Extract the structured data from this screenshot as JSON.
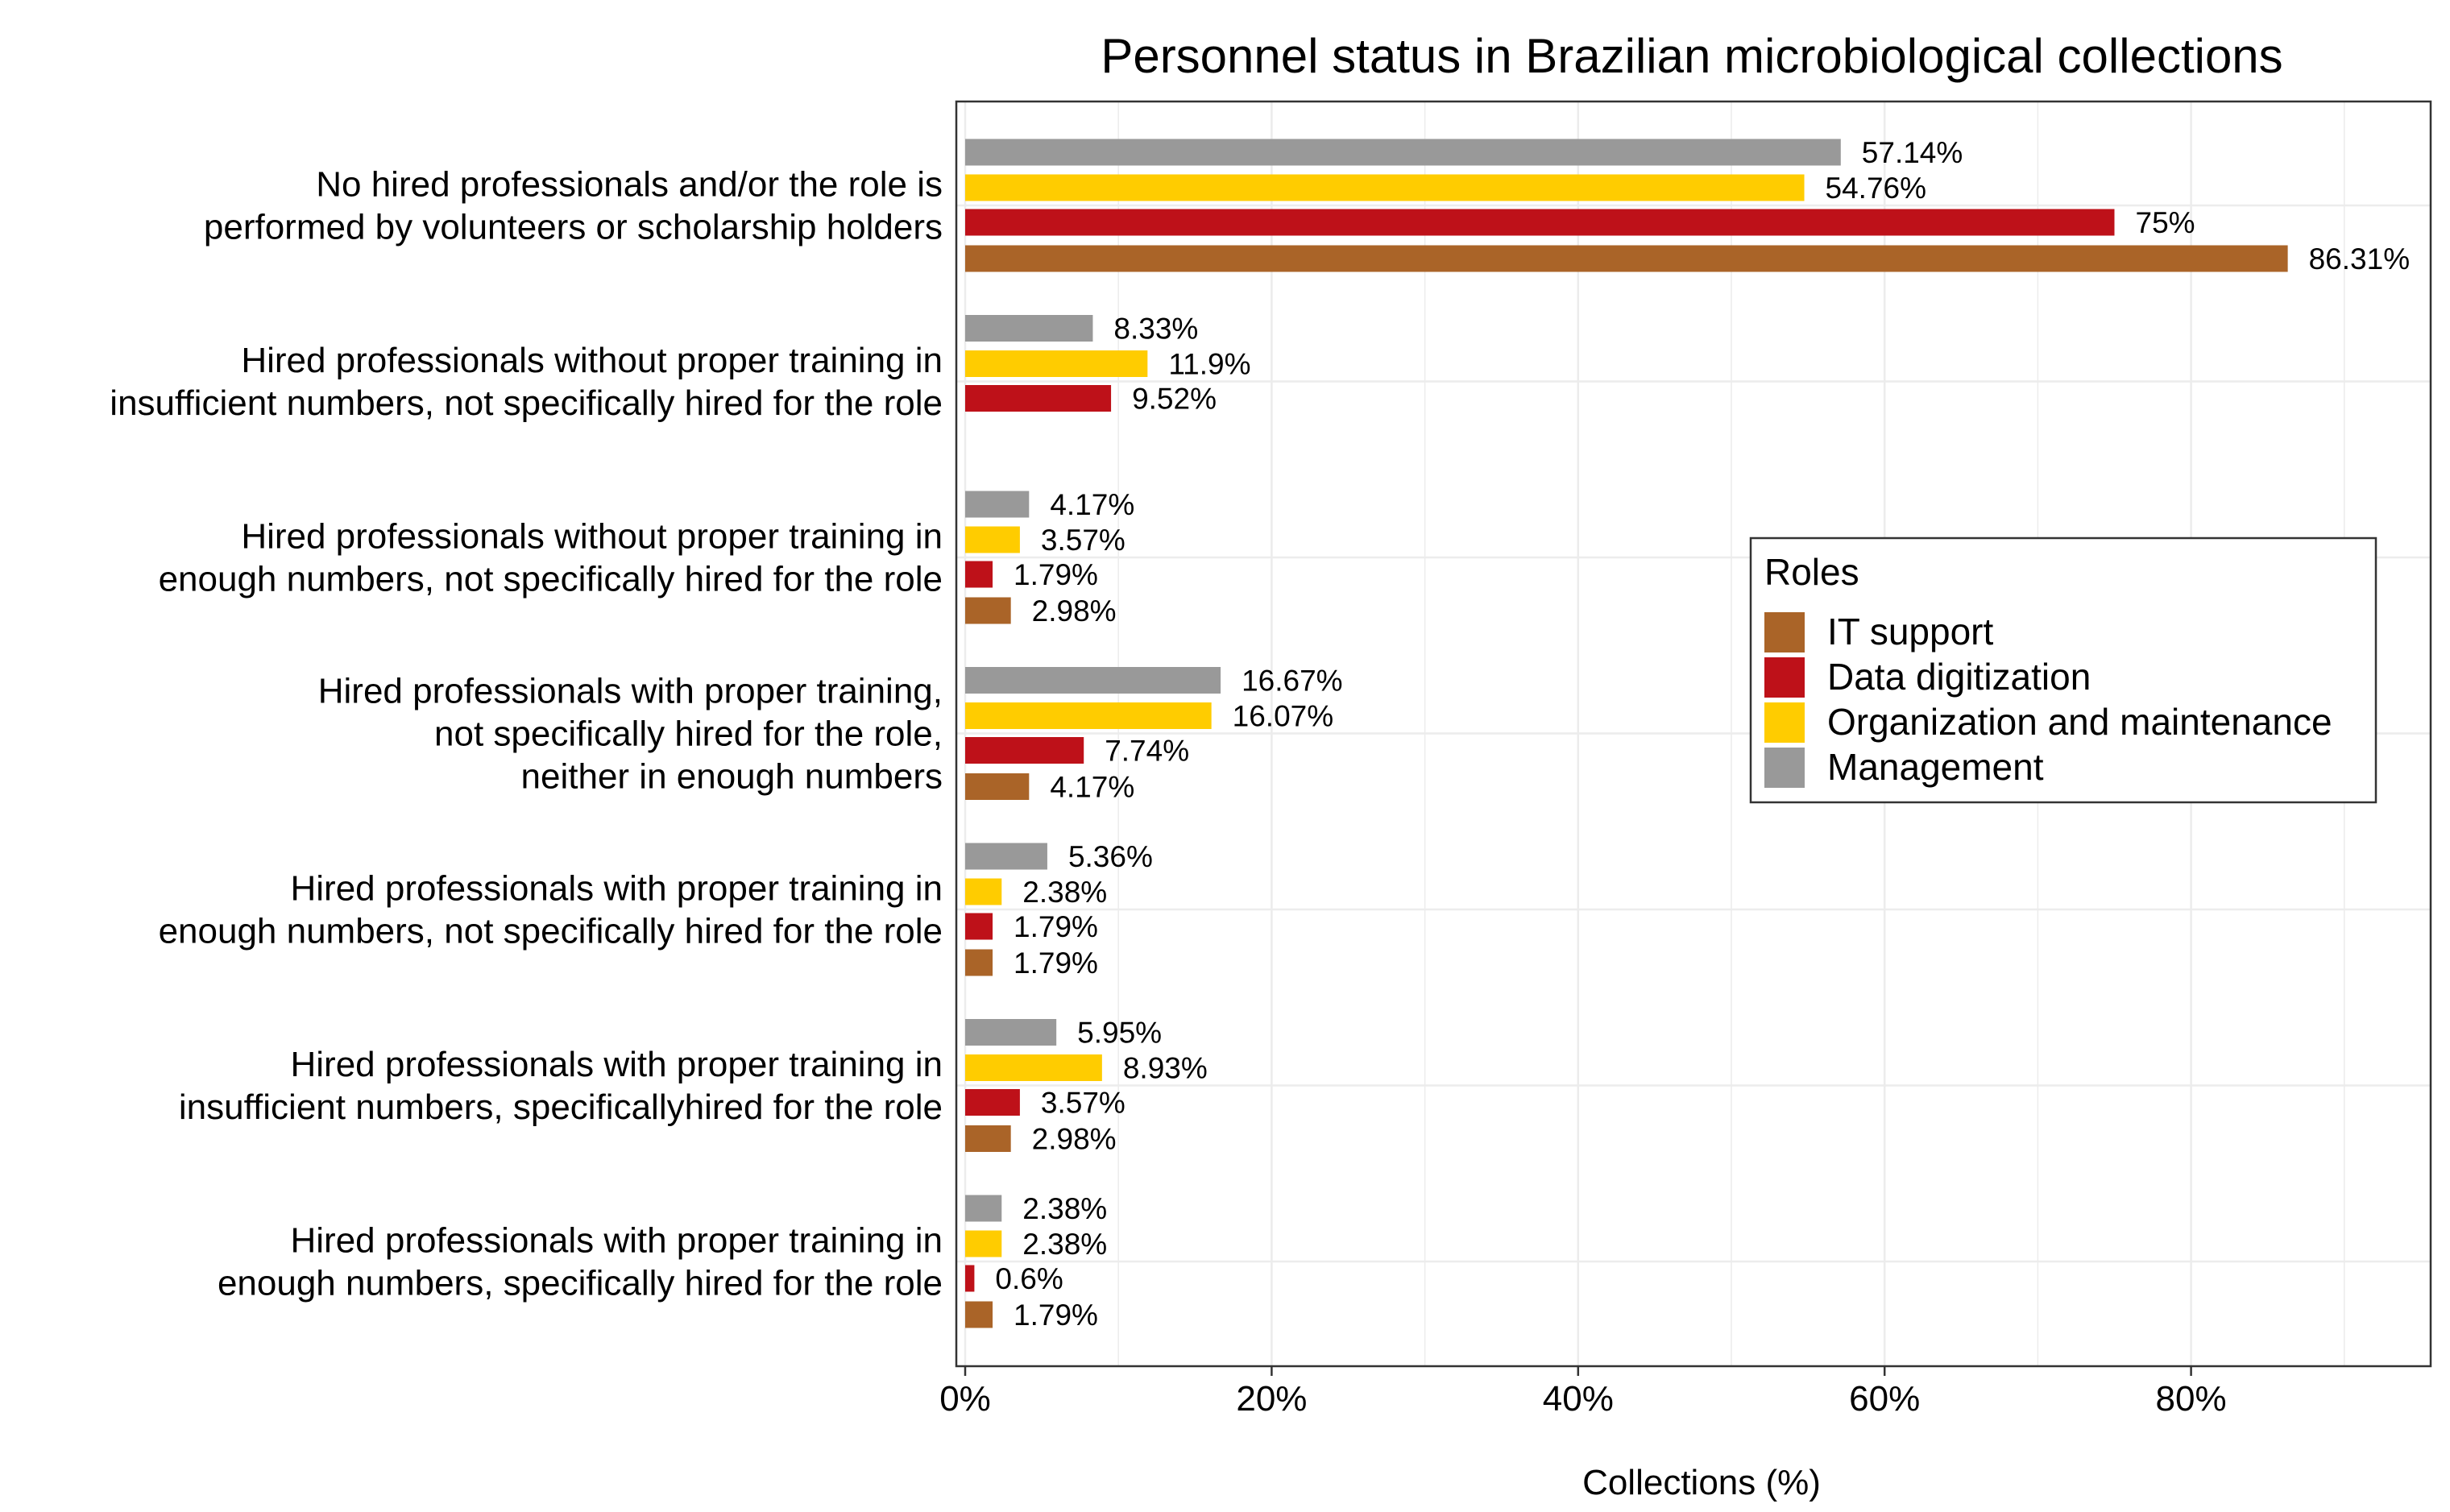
{
  "colors": {
    "management": "#999999",
    "organization": "#FFCC00",
    "digitization": "#BE1119",
    "it_support": "#AA6428"
  },
  "chart_data": {
    "type": "bar",
    "orientation": "horizontal",
    "title": "Personnel status in Brazilian microbiological collections",
    "xlabel": "Collections (%)",
    "ylabel": "",
    "xlim": [
      0,
      95
    ],
    "x_ticks": [
      "0%",
      "20%",
      "40%",
      "60%",
      "80%"
    ],
    "x_tick_values": [
      0,
      20,
      40,
      60,
      80
    ],
    "grid": true,
    "legend_position": "right",
    "legend_title": "Roles",
    "legend_entries": [
      "IT support",
      "Data digitization",
      "Organization and maintenance",
      "Management"
    ],
    "categories": [
      [
        "No hired professionals and/or the role is",
        "performed by volunteers or scholarship holders"
      ],
      [
        "Hired professionals without proper training in",
        "insufficient numbers, not specifically hired for the role"
      ],
      [
        "Hired professionals without proper training in",
        "enough numbers, not specifically hired for the role"
      ],
      [
        "Hired professionals with proper training,",
        "not specifically hired for the role,",
        "neither in enough numbers"
      ],
      [
        "Hired professionals with proper training in",
        "enough numbers, not specifically hired for the role"
      ],
      [
        "Hired professionals with proper training in",
        "insufficient numbers, specificallyhired for the role"
      ],
      [
        "Hired professionals with proper training in",
        "enough numbers, specifically hired for the role"
      ]
    ],
    "series": [
      {
        "name": "Management",
        "color_key": "management",
        "values": [
          57.14,
          8.33,
          4.17,
          16.67,
          5.36,
          5.95,
          2.38
        ],
        "labels": [
          "57.14%",
          "8.33%",
          "4.17%",
          "16.67%",
          "5.36%",
          "5.95%",
          "2.38%"
        ]
      },
      {
        "name": "Organization and maintenance",
        "color_key": "organization",
        "values": [
          54.76,
          11.9,
          3.57,
          16.07,
          2.38,
          8.93,
          2.38
        ],
        "labels": [
          "54.76%",
          "11.9%",
          "3.57%",
          "16.07%",
          "2.38%",
          "8.93%",
          "2.38%"
        ]
      },
      {
        "name": "Data digitization",
        "color_key": "digitization",
        "values": [
          75,
          9.52,
          1.79,
          7.74,
          1.79,
          3.57,
          0.6
        ],
        "labels": [
          "75%",
          "9.52%",
          "1.79%",
          "7.74%",
          "1.79%",
          "3.57%",
          "0.6%"
        ]
      },
      {
        "name": "IT support",
        "color_key": "it_support",
        "values": [
          86.31,
          null,
          2.98,
          4.17,
          1.79,
          2.98,
          1.79
        ],
        "labels": [
          "86.31%",
          null,
          "2.98%",
          "4.17%",
          "1.79%",
          "2.98%",
          "1.79%"
        ]
      }
    ]
  }
}
